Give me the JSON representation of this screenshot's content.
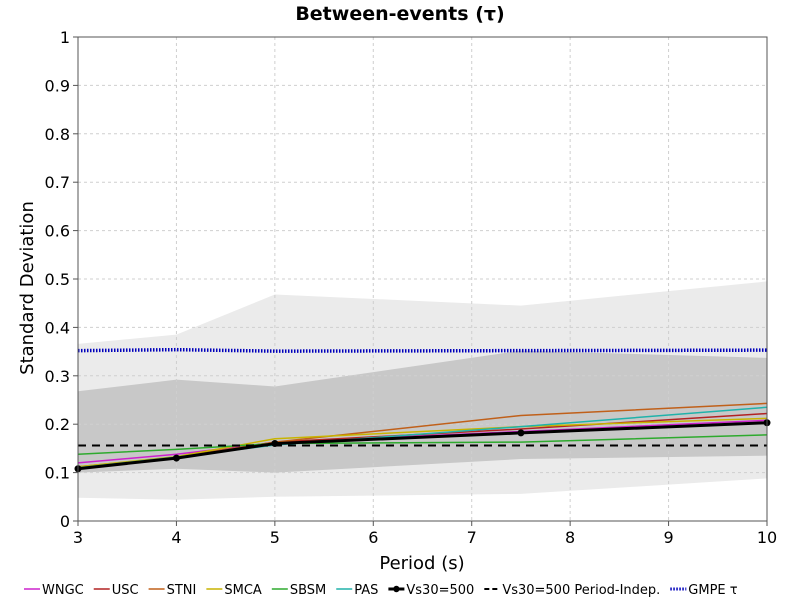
{
  "chart_data": {
    "type": "line",
    "title": "Between-events (τ)",
    "xlabel": "Period (s)",
    "ylabel": "Standard Deviation",
    "xlim": [
      3,
      10
    ],
    "ylim": [
      0,
      1
    ],
    "xticks": [
      "3",
      "4",
      "5",
      "6",
      "7",
      "8",
      "9",
      "10"
    ],
    "yticks": [
      "0",
      "0.1",
      "0.2",
      "0.3",
      "0.4",
      "0.5",
      "0.6",
      "0.7",
      "0.8",
      "0.9",
      "1"
    ],
    "grid": true,
    "legend_position": "bottom",
    "bands": [
      {
        "color": "#ebebeb",
        "x": [
          3,
          4,
          5,
          7.5,
          10
        ],
        "lower": [
          0.048,
          0.044,
          0.05,
          0.056,
          0.088
        ],
        "upper": [
          0.366,
          0.385,
          0.468,
          0.445,
          0.495
        ]
      },
      {
        "color": "#c8c8c8",
        "x": [
          3,
          4,
          5,
          7.5,
          10
        ],
        "lower": [
          0.1,
          0.108,
          0.1,
          0.128,
          0.135
        ],
        "upper": [
          0.268,
          0.292,
          0.278,
          0.352,
          0.337
        ]
      }
    ],
    "series": [
      {
        "name": "WNGC",
        "color": "#cc22cc",
        "width": 1.5,
        "x": [
          3,
          4,
          5,
          7.5,
          10
        ],
        "y": [
          0.12,
          0.138,
          0.162,
          0.185,
          0.208
        ]
      },
      {
        "name": "USC",
        "color": "#b22222",
        "width": 1.5,
        "x": [
          3,
          4,
          5,
          7.5,
          10
        ],
        "y": [
          0.11,
          0.132,
          0.163,
          0.19,
          0.222
        ]
      },
      {
        "name": "STNI",
        "color": "#c0601a",
        "width": 1.5,
        "x": [
          3,
          4,
          5,
          7.5,
          10
        ],
        "y": [
          0.112,
          0.132,
          0.163,
          0.218,
          0.243
        ]
      },
      {
        "name": "SMCA",
        "color": "#c8b400",
        "width": 1.5,
        "x": [
          3,
          4,
          5,
          7.5,
          10
        ],
        "y": [
          0.112,
          0.133,
          0.17,
          0.195,
          0.212
        ]
      },
      {
        "name": "SBSM",
        "color": "#2eaa2e",
        "width": 1.5,
        "x": [
          3,
          4,
          5,
          7.5,
          10
        ],
        "y": [
          0.138,
          0.148,
          0.16,
          0.163,
          0.178
        ]
      },
      {
        "name": "PAS",
        "color": "#20b2aa",
        "width": 1.5,
        "x": [
          3,
          4,
          5,
          7.5,
          10
        ],
        "y": [
          0.11,
          0.132,
          0.157,
          0.195,
          0.235
        ]
      },
      {
        "name": "Vs30=500",
        "color": "#000000",
        "width": 3,
        "markers": true,
        "x": [
          3,
          4,
          5,
          7.5,
          10
        ],
        "y": [
          0.108,
          0.13,
          0.16,
          0.182,
          0.203
        ]
      },
      {
        "name": "Vs30=500 Period-Indep.",
        "color": "#000000",
        "width": 2,
        "dash": "8,6",
        "x": [
          3,
          10
        ],
        "y": [
          0.156,
          0.156
        ]
      },
      {
        "name": "GMPE τ",
        "color": "#0000bb",
        "width": 3.5,
        "dash": "1.5,1.5",
        "x": [
          3,
          4,
          5,
          7.5,
          10
        ],
        "y": [
          0.352,
          0.354,
          0.351,
          0.352,
          0.353
        ]
      }
    ]
  }
}
